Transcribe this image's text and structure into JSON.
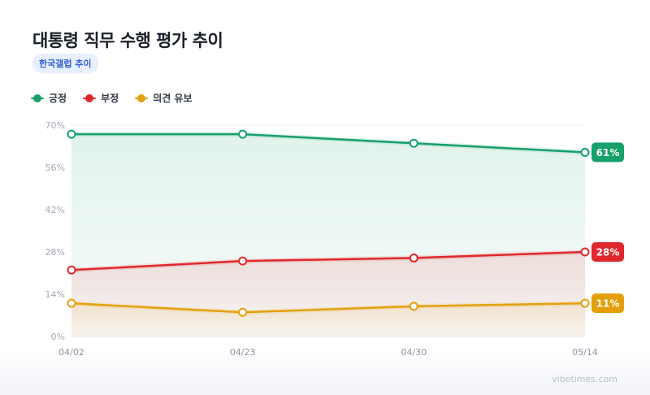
{
  "title": "대통령 직무 수행 평가 추이",
  "source_badge": "한국갤럽 추이",
  "watermark": "vibetimes.com",
  "colors": {
    "positive": "#16a06a",
    "negative": "#e0282c",
    "undecided": "#e3a00c"
  },
  "chart_data": {
    "type": "line",
    "title": "대통령 직무 수행 평가 추이",
    "categories": [
      "04/02",
      "04/23",
      "04/30",
      "05/14"
    ],
    "y_ticks": [
      "0%",
      "14%",
      "28%",
      "42%",
      "56%",
      "70%"
    ],
    "ylim": [
      0,
      70
    ],
    "grid": true,
    "legend_position": "top-left",
    "series": [
      {
        "name": "긍정",
        "color": "#16a06a",
        "values": [
          67,
          67,
          64,
          61
        ],
        "end_label": "61%"
      },
      {
        "name": "부정",
        "color": "#e0282c",
        "values": [
          22,
          25,
          26,
          28
        ],
        "end_label": "28%"
      },
      {
        "name": "의견 유보",
        "color": "#e3a00c",
        "values": [
          11,
          8,
          10,
          11
        ],
        "end_label": "11%"
      }
    ]
  }
}
